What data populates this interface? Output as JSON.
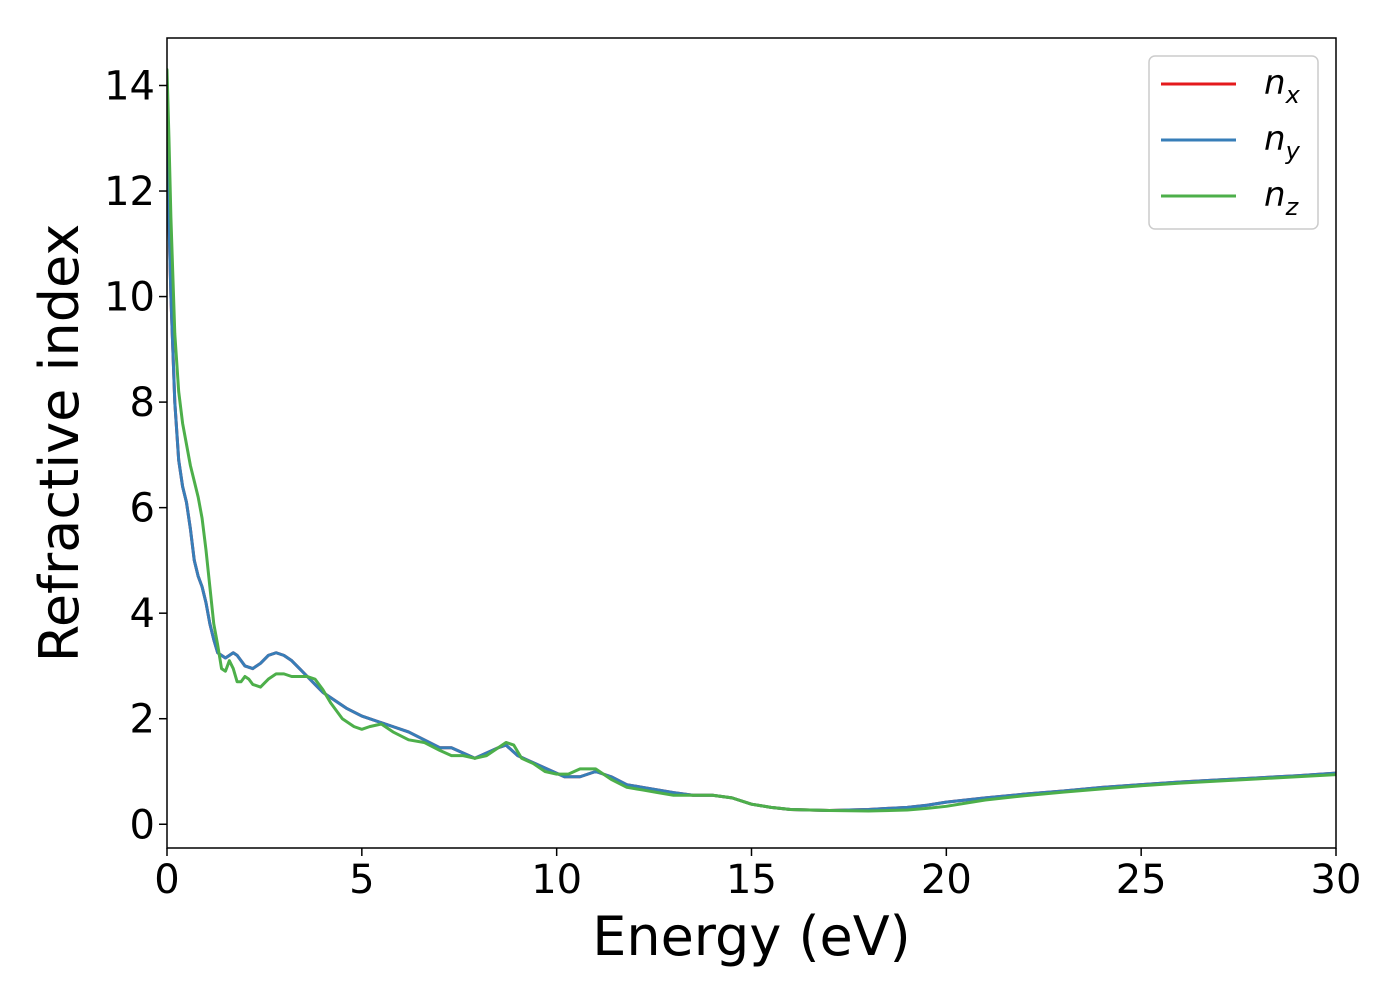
{
  "chart_data": {
    "type": "line",
    "xlabel": "Energy (eV)",
    "ylabel": "Refractive index",
    "xlim": [
      0,
      30
    ],
    "ylim": [
      -0.45,
      14.9
    ],
    "xticks": [
      "0",
      "5",
      "10",
      "15",
      "20",
      "25",
      "30"
    ],
    "yticks": [
      "0",
      "2",
      "4",
      "6",
      "8",
      "10",
      "12",
      "14"
    ],
    "grid": false,
    "legend_position": "top-right",
    "series": [
      {
        "name": "n_x",
        "legend": {
          "base": "n",
          "sub": "x"
        },
        "color": "#e41a1c",
        "x": [
          0,
          0.1,
          0.2,
          0.3,
          0.4,
          0.5,
          0.6,
          0.7,
          0.8,
          0.9,
          1.0,
          1.1,
          1.2,
          1.3,
          1.4,
          1.5,
          1.6,
          1.7,
          1.8,
          1.9,
          2.0,
          2.2,
          2.4,
          2.6,
          2.8,
          3.0,
          3.2,
          3.4,
          3.6,
          3.8,
          4.0,
          4.3,
          4.6,
          5.0,
          5.4,
          5.8,
          6.2,
          6.6,
          7.0,
          7.3,
          7.6,
          7.9,
          8.2,
          8.5,
          8.7,
          9.0,
          9.3,
          9.6,
          9.9,
          10.2,
          10.6,
          11.0,
          11.4,
          11.8,
          12.2,
          12.6,
          13.0,
          13.5,
          14.0,
          14.5,
          15.0,
          15.5,
          16.0,
          17.0,
          18.0,
          19.0,
          19.5,
          20.0,
          20.5,
          21.0,
          22.0,
          23.0,
          24.0,
          25.0,
          26.0,
          27.0,
          28.0,
          29.0,
          30.0
        ],
        "y": [
          12.9,
          10.0,
          8.0,
          6.9,
          6.4,
          6.1,
          5.6,
          5.0,
          4.7,
          4.5,
          4.2,
          3.8,
          3.5,
          3.25,
          3.2,
          3.15,
          3.2,
          3.25,
          3.2,
          3.1,
          3.0,
          2.95,
          3.05,
          3.2,
          3.25,
          3.2,
          3.1,
          2.95,
          2.8,
          2.65,
          2.5,
          2.35,
          2.2,
          2.05,
          1.95,
          1.85,
          1.75,
          1.6,
          1.45,
          1.45,
          1.35,
          1.25,
          1.35,
          1.45,
          1.5,
          1.3,
          1.2,
          1.1,
          1.0,
          0.9,
          0.9,
          1.0,
          0.9,
          0.75,
          0.7,
          0.65,
          0.6,
          0.55,
          0.55,
          0.5,
          0.38,
          0.32,
          0.28,
          0.26,
          0.28,
          0.32,
          0.36,
          0.42,
          0.46,
          0.5,
          0.57,
          0.63,
          0.7,
          0.75,
          0.8,
          0.84,
          0.88,
          0.92,
          0.97
        ]
      },
      {
        "name": "n_y",
        "legend": {
          "base": "n",
          "sub": "y"
        },
        "color": "#377eb8",
        "x": [
          0,
          0.1,
          0.2,
          0.3,
          0.4,
          0.5,
          0.6,
          0.7,
          0.8,
          0.9,
          1.0,
          1.1,
          1.2,
          1.3,
          1.4,
          1.5,
          1.6,
          1.7,
          1.8,
          1.9,
          2.0,
          2.2,
          2.4,
          2.6,
          2.8,
          3.0,
          3.2,
          3.4,
          3.6,
          3.8,
          4.0,
          4.3,
          4.6,
          5.0,
          5.4,
          5.8,
          6.2,
          6.6,
          7.0,
          7.3,
          7.6,
          7.9,
          8.2,
          8.5,
          8.7,
          9.0,
          9.3,
          9.6,
          9.9,
          10.2,
          10.6,
          11.0,
          11.4,
          11.8,
          12.2,
          12.6,
          13.0,
          13.5,
          14.0,
          14.5,
          15.0,
          15.5,
          16.0,
          17.0,
          18.0,
          19.0,
          19.5,
          20.0,
          20.5,
          21.0,
          22.0,
          23.0,
          24.0,
          25.0,
          26.0,
          27.0,
          28.0,
          29.0,
          30.0
        ],
        "y": [
          12.9,
          10.0,
          8.0,
          6.9,
          6.4,
          6.1,
          5.6,
          5.0,
          4.7,
          4.5,
          4.2,
          3.8,
          3.5,
          3.25,
          3.2,
          3.15,
          3.2,
          3.25,
          3.2,
          3.1,
          3.0,
          2.95,
          3.05,
          3.2,
          3.25,
          3.2,
          3.1,
          2.95,
          2.8,
          2.65,
          2.5,
          2.35,
          2.2,
          2.05,
          1.95,
          1.85,
          1.75,
          1.6,
          1.45,
          1.45,
          1.35,
          1.25,
          1.35,
          1.45,
          1.5,
          1.3,
          1.2,
          1.1,
          1.0,
          0.9,
          0.9,
          1.0,
          0.9,
          0.75,
          0.7,
          0.65,
          0.6,
          0.55,
          0.55,
          0.5,
          0.38,
          0.32,
          0.28,
          0.26,
          0.28,
          0.32,
          0.36,
          0.42,
          0.46,
          0.5,
          0.57,
          0.63,
          0.7,
          0.75,
          0.8,
          0.84,
          0.88,
          0.92,
          0.97
        ]
      },
      {
        "name": "n_z",
        "legend": {
          "base": "n",
          "sub": "z"
        },
        "color": "#4daf4a",
        "x": [
          0,
          0.05,
          0.1,
          0.2,
          0.3,
          0.4,
          0.5,
          0.6,
          0.7,
          0.8,
          0.9,
          1.0,
          1.1,
          1.2,
          1.3,
          1.4,
          1.5,
          1.6,
          1.7,
          1.8,
          1.9,
          2.0,
          2.1,
          2.2,
          2.4,
          2.6,
          2.8,
          3.0,
          3.2,
          3.4,
          3.6,
          3.8,
          4.0,
          4.2,
          4.5,
          4.8,
          5.0,
          5.2,
          5.5,
          5.8,
          6.2,
          6.6,
          7.0,
          7.3,
          7.6,
          7.9,
          8.2,
          8.5,
          8.7,
          8.9,
          9.1,
          9.4,
          9.7,
          10.0,
          10.3,
          10.6,
          11.0,
          11.4,
          11.8,
          12.2,
          12.6,
          13.0,
          13.5,
          14.0,
          14.5,
          15.0,
          15.5,
          16.0,
          17.0,
          18.0,
          19.0,
          19.5,
          20.0,
          20.5,
          21.0,
          22.0,
          23.0,
          24.0,
          25.0,
          26.0,
          27.0,
          28.0,
          29.0,
          30.0
        ],
        "y": [
          14.3,
          13.0,
          11.5,
          9.3,
          8.2,
          7.6,
          7.2,
          6.8,
          6.5,
          6.2,
          5.8,
          5.2,
          4.5,
          3.8,
          3.4,
          2.95,
          2.9,
          3.1,
          2.95,
          2.7,
          2.7,
          2.8,
          2.75,
          2.65,
          2.6,
          2.75,
          2.85,
          2.85,
          2.8,
          2.8,
          2.8,
          2.75,
          2.55,
          2.3,
          2.0,
          1.85,
          1.8,
          1.85,
          1.9,
          1.75,
          1.6,
          1.55,
          1.4,
          1.3,
          1.3,
          1.25,
          1.3,
          1.45,
          1.55,
          1.5,
          1.25,
          1.15,
          1.0,
          0.95,
          0.95,
          1.05,
          1.05,
          0.85,
          0.7,
          0.65,
          0.6,
          0.55,
          0.55,
          0.55,
          0.5,
          0.38,
          0.32,
          0.28,
          0.26,
          0.25,
          0.27,
          0.3,
          0.34,
          0.4,
          0.46,
          0.54,
          0.61,
          0.67,
          0.73,
          0.78,
          0.82,
          0.86,
          0.9,
          0.94
        ]
      }
    ]
  }
}
